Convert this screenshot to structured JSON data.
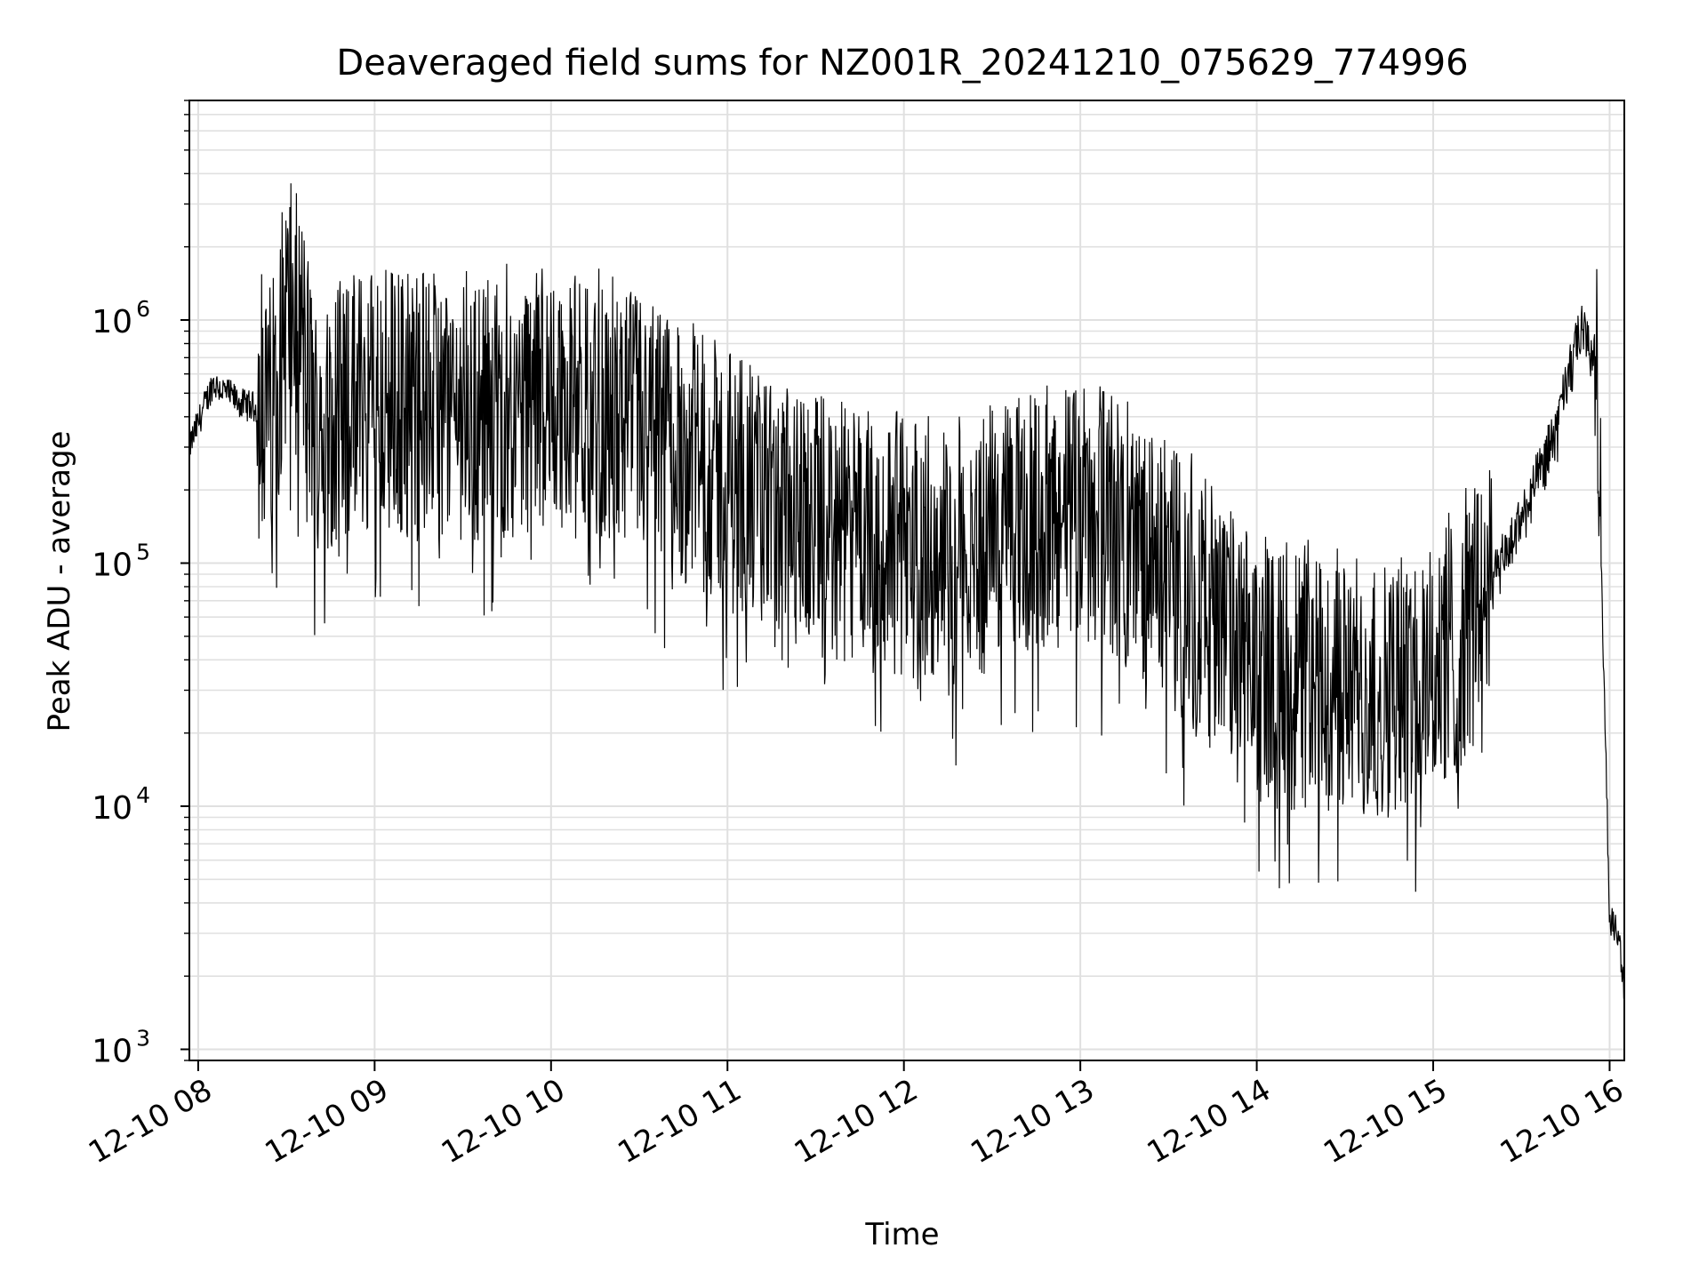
{
  "chart_data": {
    "type": "line",
    "title": "Deaveraged field sums for NZ001R_20241210_075629_774996",
    "xlabel": "Time",
    "ylabel": "Peak ADU - average",
    "yscale": "log",
    "ylim": [
      900,
      8000000
    ],
    "xlim": [
      "2024-12-10 07:57",
      "2024-12-10 16:05"
    ],
    "grid": true,
    "line_color": "#000000",
    "grid_color": "#e0e0e0",
    "x_ticks": [
      "12-10 08",
      "12-10 09",
      "12-10 10",
      "12-10 11",
      "12-10 12",
      "12-10 13",
      "12-10 14",
      "12-10 15",
      "12-10 16"
    ],
    "x_tick_times": [
      "2024-12-10 08:00",
      "2024-12-10 09:00",
      "2024-12-10 10:00",
      "2024-12-10 11:00",
      "2024-12-10 12:00",
      "2024-12-10 13:00",
      "2024-12-10 14:00",
      "2024-12-10 15:00",
      "2024-12-10 16:00"
    ],
    "y_ticks": [
      {
        "base": "10",
        "exp": "3",
        "value": 1000
      },
      {
        "base": "10",
        "exp": "4",
        "value": 10000
      },
      {
        "base": "10",
        "exp": "5",
        "value": 100000
      },
      {
        "base": "10",
        "exp": "6",
        "value": 1000000
      }
    ],
    "series": [
      {
        "x": [
          "2024-12-10 07:57",
          "2024-12-10 08:05",
          "2024-12-10 08:15",
          "2024-12-10 08:25",
          "2024-12-10 08:30",
          "2024-12-10 08:35",
          "2024-12-10 08:40",
          "2024-12-10 08:50",
          "2024-12-10 09:00",
          "2024-12-10 09:20",
          "2024-12-10 09:40",
          "2024-12-10 10:00",
          "2024-12-10 10:20",
          "2024-12-10 10:40",
          "2024-12-10 11:00",
          "2024-12-10 11:20",
          "2024-12-10 11:40",
          "2024-12-10 12:00",
          "2024-12-10 12:20",
          "2024-12-10 12:40",
          "2024-12-10 13:00",
          "2024-12-10 13:20",
          "2024-12-10 13:40",
          "2024-12-10 14:00",
          "2024-12-10 14:20",
          "2024-12-10 14:40",
          "2024-12-10 15:00",
          "2024-12-10 15:10",
          "2024-12-10 15:20",
          "2024-12-10 15:30",
          "2024-12-10 15:40",
          "2024-12-10 15:45",
          "2024-12-10 15:50",
          "2024-12-10 15:55",
          "2024-12-10 15:57",
          "2024-12-10 16:00",
          "2024-12-10 16:03",
          "2024-12-10 16:05"
        ],
        "y": [
          300000,
          550000,
          450000,
          420000,
          1100000,
          900000,
          350000,
          450000,
          500000,
          450000,
          420000,
          480000,
          400000,
          320000,
          220000,
          150000,
          130000,
          120000,
          110000,
          140000,
          170000,
          120000,
          70000,
          35000,
          32000,
          30000,
          35000,
          50000,
          80000,
          150000,
          300000,
          500000,
          900000,
          700000,
          120000,
          3500,
          3000,
          1700
        ]
      }
    ]
  }
}
